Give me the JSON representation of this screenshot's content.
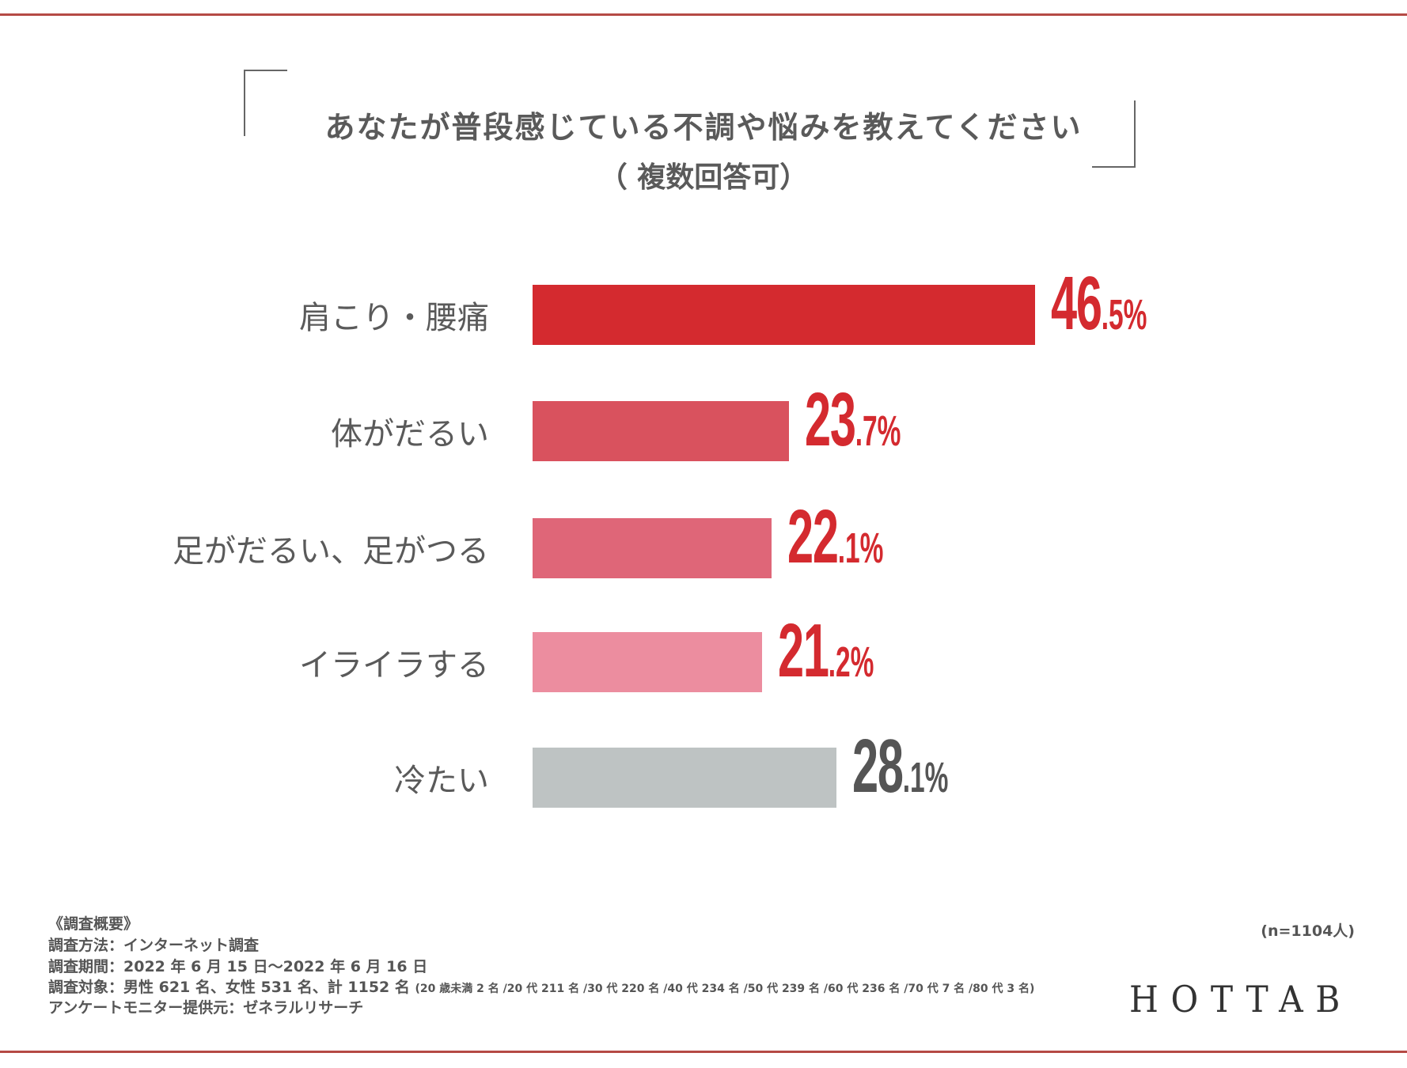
{
  "title": "あなたが普段感じている不調や悩みを教えてください",
  "subtitle": "（ 複数回答可）",
  "colors": {
    "accent": "#d42a2f",
    "rule": "#b54a45",
    "gray_text": "#555555"
  },
  "chart_data": {
    "type": "bar",
    "orientation": "horizontal",
    "title": "あなたが普段感じている不調や悩みを教えてください（複数回答可）",
    "categories": [
      "肩こり・腰痛",
      "体がだるい",
      "足がだるい、足がつる",
      "イライラする",
      "冷たい"
    ],
    "values": [
      46.5,
      23.7,
      22.1,
      21.2,
      28.1
    ],
    "value_labels": [
      {
        "int": "46",
        "dec": ".5%"
      },
      {
        "int": "23",
        "dec": ".7%"
      },
      {
        "int": "22",
        "dec": ".1%"
      },
      {
        "int": "21",
        "dec": ".2%"
      },
      {
        "int": "28",
        "dec": ".1%"
      }
    ],
    "bar_colors": [
      "#d42a2f",
      "#d9525e",
      "#df6678",
      "#ec8d9f",
      "#bec3c3"
    ],
    "label_colors": [
      "#d42a2f",
      "#d42a2f",
      "#d42a2f",
      "#d42a2f",
      "#555555"
    ],
    "unit": "%",
    "grid": false
  },
  "sample": "(n=1104人)",
  "footer": {
    "heading": "《調査概要》",
    "method": "調査方法：インターネット調査",
    "period": "調査期間：2022 年 6 月 15 日〜2022 年 6 月 16 日",
    "target": "調査対象：男性 621 名、女性 531 名、計 1152 名",
    "target_detail": "(20 歳未満 2 名 /20 代 211 名 /30 代 220 名 /40 代 234 名 /50 代 239 名 /60 代 236 名 /70 代 7 名 /80 代 3 名)",
    "provider": "アンケートモニター提供元：ゼネラルリサーチ"
  },
  "brand": "HOTTAB"
}
